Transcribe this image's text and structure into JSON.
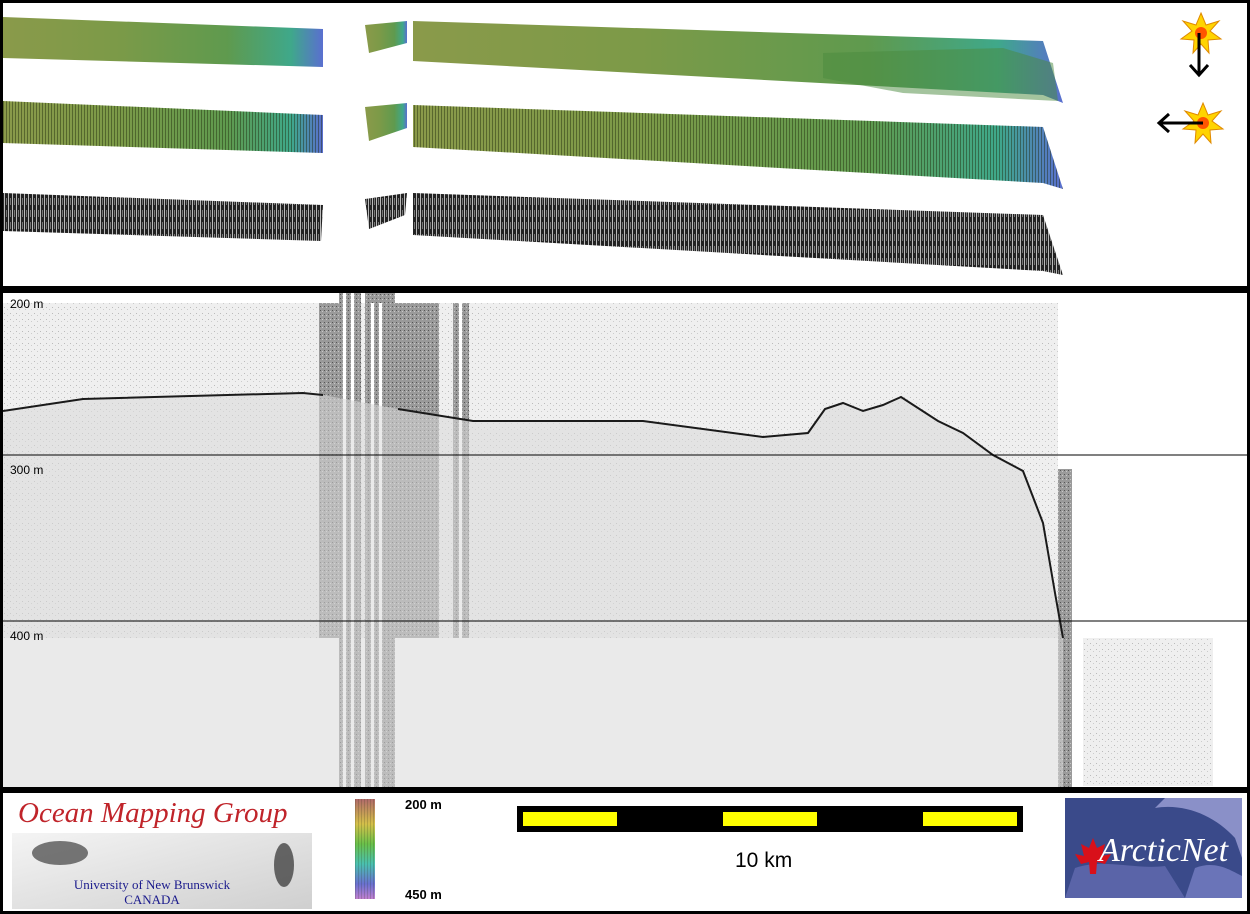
{
  "echogram": {
    "depth_labels": [
      "200 m",
      "300 m",
      "400 m"
    ]
  },
  "legend": {
    "colorbar_top": "200 m",
    "colorbar_bottom": "450 m",
    "scale_bar": "10 km",
    "colors": {
      "scale_yellow": "#ffff00",
      "scale_black": "#000000",
      "sun": "#ffd400"
    }
  },
  "logos": {
    "ocean_mapping_title": "Ocean Mapping Group",
    "ocean_mapping_sub1": "University of New Brunswick",
    "ocean_mapping_sub2": "CANADA",
    "arcticnet": "ArcticNet"
  },
  "icons": [
    "sun-icon",
    "arrow-down-icon",
    "arrow-left-icon",
    "maple-leaf-icon"
  ]
}
